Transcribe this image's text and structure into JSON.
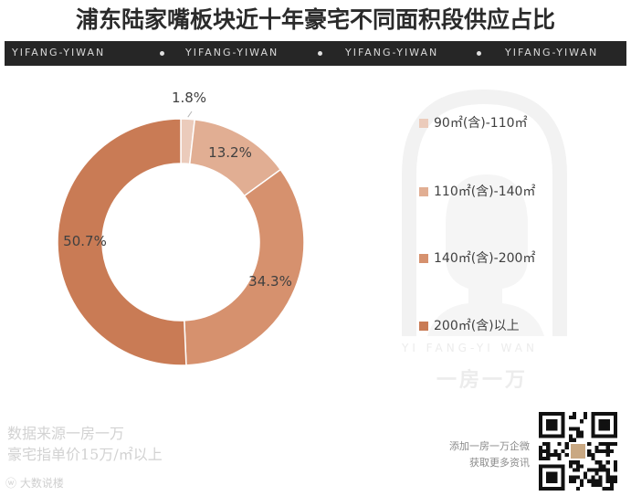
{
  "title": "浦东陆家嘴板块近十年豪宅不同面积段供应占比",
  "banner": {
    "items": [
      "YIFANG-YIWAN",
      "YIFANG-YIWAN",
      "YIFANG-YIWAN",
      "YIFANG-YIWAN"
    ]
  },
  "chart_data": {
    "type": "pie",
    "variant": "donut",
    "categories": [
      "90㎡(含)-110㎡",
      "110㎡(含)-140㎡",
      "140㎡(含)-200㎡",
      "200㎡(含)以上"
    ],
    "values": [
      1.8,
      13.2,
      34.3,
      50.7
    ],
    "labels": [
      "1.8%",
      "13.2%",
      "34.3%",
      "50.7%"
    ],
    "colors": [
      "#ebcbbb",
      "#e1ae93",
      "#d6916e",
      "#c97b55"
    ],
    "legend_position": "right"
  },
  "watermark": {
    "latin": "YI FANG-YI WAN",
    "chinese": "一房一万"
  },
  "source_lines": [
    "数据来源一房一万",
    "豪宅指单价15万/㎡以上"
  ],
  "weibo_label": "大数说楼",
  "contact_lines": [
    "添加一房一万企微",
    "获取更多资讯"
  ]
}
